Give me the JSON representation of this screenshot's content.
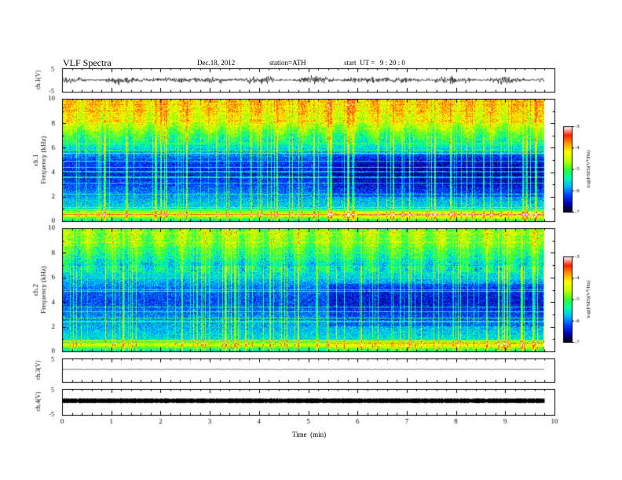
{
  "header": {
    "title": "VLF Spectra",
    "date": "Dec.18, 2012",
    "station": "station=ATH",
    "start_ut": "start  UT =   9 : 20 : 0"
  },
  "colors": {
    "background": "#ffffff",
    "axis": "#000000",
    "colormap": [
      "#000000",
      "#0000b0",
      "#0040ff",
      "#00b8ff",
      "#00ffb0",
      "#30ff30",
      "#c0ff00",
      "#ffff00",
      "#ffa000",
      "#ff2000",
      "#ffffff"
    ]
  },
  "chart_data": [
    {
      "type": "line",
      "panel": "ch1-waveform",
      "ylabel": "ch.1(V)",
      "ylim": [
        -5,
        5
      ],
      "yticks": [
        "5",
        "-5"
      ],
      "x": [
        0,
        1,
        2,
        3,
        4,
        5,
        6,
        7,
        8,
        9,
        9.8
      ],
      "y": [
        0,
        0.1,
        -0.1,
        0,
        0.1,
        0,
        -0.1,
        0.1,
        0,
        0.1,
        0
      ],
      "description_level": "noisy signal near 0 V with amplitude about ±1 V"
    },
    {
      "type": "heatmap",
      "panel": "ch1-spectrogram",
      "ylabel_1": "ch.1",
      "ylabel_2": "Frequency (kHz)",
      "ylim": [
        0,
        10
      ],
      "yticks": [
        "0",
        "2",
        "4",
        "6",
        "8",
        "10"
      ],
      "xlim": [
        0,
        9.8
      ],
      "colorbar_label": "log(PSD)(V²/Hz)",
      "colorbar_range": [
        -7,
        -3
      ],
      "colorbar_ticks": [
        "-3",
        "-4",
        "-5",
        "-6",
        "-7"
      ],
      "profile_kHz": [
        0,
        0.5,
        1,
        2,
        3,
        4,
        5,
        5.5,
        6,
        7,
        8,
        9,
        10
      ],
      "profile_logpsd": [
        -5.5,
        -4.2,
        -5.6,
        -5.9,
        -6.2,
        -6.4,
        -6.2,
        -5.9,
        -5.6,
        -5.1,
        -4.5,
        -4.2,
        -4.1
      ]
    },
    {
      "type": "heatmap",
      "panel": "ch2-spectrogram",
      "ylabel_1": "ch.2",
      "ylabel_2": "Frequency (kHz)",
      "ylim": [
        0,
        10
      ],
      "yticks": [
        "0",
        "2",
        "4",
        "6",
        "8",
        "10"
      ],
      "xlim": [
        0,
        9.8
      ],
      "colorbar_label": "log(PSD)(V²/Hz)",
      "colorbar_range": [
        -7,
        -3
      ],
      "colorbar_ticks": [
        "-3",
        "-4",
        "-5",
        "-6",
        "-7"
      ],
      "profile_kHz": [
        0,
        0.5,
        1,
        2,
        3,
        4,
        5,
        5.5,
        6,
        7,
        8,
        9,
        10
      ],
      "profile_logpsd": [
        -5.6,
        -4.4,
        -5.6,
        -5.8,
        -6.0,
        -6.2,
        -6.1,
        -5.9,
        -5.7,
        -5.4,
        -5.0,
        -4.6,
        -4.6
      ]
    },
    {
      "type": "line",
      "panel": "ch3-waveform",
      "ylabel": "ch.3(V)",
      "ylim": [
        -5,
        5
      ],
      "yticks": [
        "5"
      ],
      "x": [
        0,
        9.8
      ],
      "y": [
        0,
        0
      ]
    },
    {
      "type": "line",
      "panel": "ch4-waveform",
      "ylabel": "ch.4(V)",
      "ylim": [
        -5,
        5
      ],
      "yticks": [
        "5",
        "-5"
      ],
      "x": [
        0,
        9.8
      ],
      "y": [
        0,
        0
      ]
    }
  ],
  "xaxis": {
    "label": "Time  (min)",
    "ticks": [
      "0",
      "1",
      "2",
      "3",
      "4",
      "5",
      "6",
      "7",
      "8",
      "9",
      "10"
    ],
    "range": [
      0,
      10
    ]
  }
}
